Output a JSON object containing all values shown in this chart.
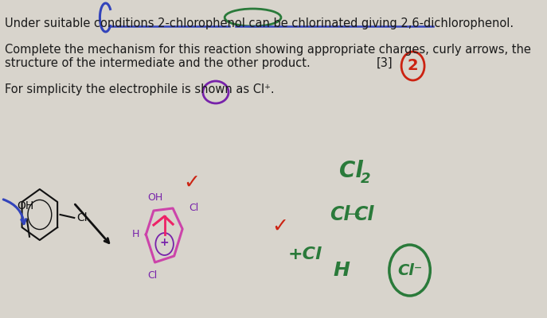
{
  "bg_color": "#d8d4cc",
  "text_color": "#1a1a1a",
  "font_size_body": 10.5,
  "line1": "Under suitable conditions 2-chlorophenol can be chlorinated giving 2,6-dichlorophenol.",
  "line2": "Complete the mechanism for this reaction showing appropriate charges, curly arrows, the",
  "line3": "structure of the intermediate and the other product.",
  "line4": "For simplicity the electrophile is shown as Cl⁺.",
  "marks_text": "[3]",
  "grade_text": "2",
  "blue_color": "#3344bb",
  "green_color": "#2a7a3a",
  "purple_color": "#7722aa",
  "red_color": "#cc2211",
  "pink_color": "#cc3388",
  "dark_color": "#111111"
}
